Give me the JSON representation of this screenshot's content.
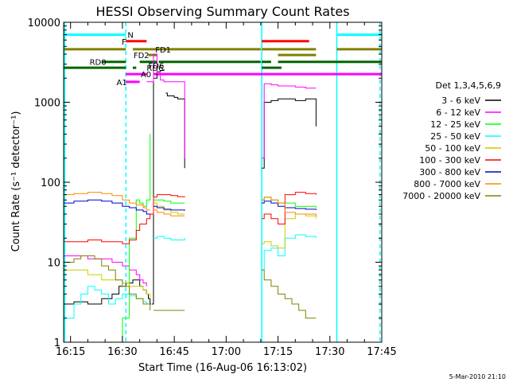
{
  "chart_data": {
    "type": "line",
    "title": "HESSI Observing Summary Count Rates",
    "xlabel": "Start Time (16-Aug-06 16:13:02)",
    "ylabel": "Count Rate (s⁻¹ detector⁻¹)",
    "footer": "5-Mar-2010 21:10",
    "x_range_min": [
      13.0,
      105.0
    ],
    "ylim": [
      1,
      10000
    ],
    "yscale": "log",
    "x_ticks": [
      {
        "min": 15,
        "label": "16:15"
      },
      {
        "min": 30,
        "label": "16:30"
      },
      {
        "min": 45,
        "label": "16:45"
      },
      {
        "min": 60,
        "label": "17:00"
      },
      {
        "min": 75,
        "label": "17:15"
      },
      {
        "min": 90,
        "label": "17:30"
      },
      {
        "min": 105,
        "label": "17:45"
      }
    ],
    "y_ticks": [
      {
        "v": 1,
        "label": "1"
      },
      {
        "v": 10,
        "label": "10"
      },
      {
        "v": 100,
        "label": "100"
      },
      {
        "v": 1000,
        "label": "1000"
      },
      {
        "v": 10000,
        "label": "10000"
      }
    ],
    "legend": {
      "title": "Det 1,3,4,5,6,9",
      "placement": "right"
    },
    "series": [
      {
        "name": "3 - 6 keV",
        "color": "#000000",
        "segments": [
          {
            "x": [
              13.0,
              16,
              20,
              24,
              27,
              29,
              31,
              33,
              35,
              36,
              37,
              37.5,
              38,
              38.3
            ],
            "y": [
              3,
              3.2,
              3,
              3.5,
              4,
              5,
              5.5,
              6,
              5,
              4.5,
              4,
              3.5,
              3,
              3
            ]
          },
          {
            "x": [
              38.5,
              39,
              40,
              41,
              42
            ],
            "y": [
              3,
              2000,
              2400,
              2500,
              2600
            ]
          },
          {
            "x": [
              42.5,
              43,
              44,
              45,
              46,
              47,
              48
            ],
            "y": [
              1300,
              1200,
              1200,
              1150,
              1100,
              1100,
              150
            ]
          },
          {
            "x": [
              70.3,
              71,
              73,
              75,
              77,
              80,
              83,
              86
            ],
            "y": [
              150,
              1000,
              1050,
              1100,
              1100,
              1050,
              1100,
              500
            ]
          }
        ]
      },
      {
        "name": "6 - 12 keV",
        "color": "#ff00ff",
        "segments": [
          {
            "x": [
              13,
              16,
              20,
              24,
              27,
              30,
              32,
              34,
              35,
              36,
              37
            ],
            "y": [
              12,
              12,
              11,
              11,
              10,
              9,
              8,
              7,
              6,
              5.5,
              5
            ]
          },
          {
            "x": [
              37,
              37.5,
              38,
              38.3,
              39,
              40,
              41,
              42
            ],
            "y": [
              1800,
              1800,
              1800,
              1800,
              4000,
              2300,
              1900,
              1800
            ]
          },
          {
            "x": [
              42,
              43,
              45,
              48
            ],
            "y": [
              1800,
              1800,
              1800,
              200
            ]
          },
          {
            "x": [
              70.3,
              71,
              73,
              75,
              77,
              80,
              83,
              86
            ],
            "y": [
              200,
              1700,
              1650,
              1600,
              1600,
              1550,
              1500,
              1500
            ]
          }
        ]
      },
      {
        "name": "12 - 25 keV",
        "color": "#00ff00",
        "segments": [
          {
            "x": [
              13,
              16,
              20,
              24,
              27,
              30,
              32,
              34,
              35,
              36,
              37,
              38
            ],
            "y": [
              1,
              1,
              1,
              1,
              1,
              2,
              20,
              60,
              55,
              50,
              60,
              400
            ]
          },
          {
            "x": [
              39,
              40,
              42,
              44,
              46,
              48
            ],
            "y": [
              60,
              60,
              58,
              55,
              55,
              55
            ]
          },
          {
            "x": [
              70.3,
              71,
              73,
              75,
              77,
              80,
              83,
              86
            ],
            "y": [
              60,
              65,
              60,
              55,
              55,
              50,
              50,
              48
            ]
          }
        ]
      },
      {
        "name": "25 - 50 keV",
        "color": "#00ffff",
        "segments": [
          {
            "x": [
              13,
              16,
              18,
              20,
              22,
              24,
              26,
              28,
              30,
              32,
              34,
              36,
              37,
              38
            ],
            "y": [
              2,
              3,
              4,
              5,
              4.5,
              4,
              3,
              3.5,
              4,
              3.8,
              3.5,
              3.2,
              3,
              3
            ]
          },
          {
            "x": [
              39,
              40,
              42,
              44,
              46,
              48
            ],
            "y": [
              20,
              21,
              20,
              19,
              19,
              20
            ]
          },
          {
            "x": [
              70.3,
              71,
              73,
              75,
              77,
              80,
              83,
              86
            ],
            "y": [
              8,
              14,
              15,
              12,
              20,
              22,
              21,
              20
            ]
          }
        ]
      },
      {
        "name": "50 - 100 keV",
        "color": "#cccc00",
        "segments": [
          {
            "x": [
              13,
              16,
              20,
              24,
              27,
              30,
              32,
              34,
              36,
              37,
              38
            ],
            "y": [
              8,
              8,
              7,
              6,
              6,
              5.5,
              5,
              5,
              4.5,
              4,
              3.5
            ]
          },
          {
            "x": [
              39,
              40,
              42,
              44,
              46,
              48
            ],
            "y": [
              55,
              50,
              45,
              42,
              40,
              40
            ]
          },
          {
            "x": [
              70.3,
              71,
              73,
              75,
              77,
              80,
              83,
              86
            ],
            "y": [
              17,
              18,
              16,
              15,
              35,
              40,
              38,
              35
            ]
          }
        ]
      },
      {
        "name": "100 - 300 keV",
        "color": "#ff0000",
        "segments": [
          {
            "x": [
              13,
              16,
              20,
              24,
              27,
              30,
              32,
              34,
              35,
              36,
              37
            ],
            "y": [
              18,
              18,
              19,
              18,
              18,
              17,
              19,
              25,
              30,
              30,
              35
            ]
          },
          {
            "x": [
              37,
              38,
              39,
              40,
              42,
              44,
              46,
              48
            ],
            "y": [
              35,
              40,
              65,
              70,
              70,
              68,
              66,
              65
            ]
          },
          {
            "x": [
              70.3,
              71,
              73,
              75,
              77,
              80,
              83,
              86
            ],
            "y": [
              35,
              40,
              35,
              30,
              70,
              75,
              72,
              70
            ]
          }
        ]
      },
      {
        "name": "300 - 800 keV",
        "color": "#0000cc",
        "segments": [
          {
            "x": [
              13,
              16,
              20,
              24,
              27,
              30,
              32,
              34,
              36,
              37,
              38
            ],
            "y": [
              55,
              58,
              60,
              58,
              55,
              50,
              48,
              45,
              43,
              40,
              40
            ]
          },
          {
            "x": [
              39,
              40,
              42,
              44,
              46,
              48
            ],
            "y": [
              50,
              48,
              46,
              45,
              45,
              44
            ]
          },
          {
            "x": [
              70.3,
              71,
              73,
              75,
              77,
              80,
              83,
              86
            ],
            "y": [
              55,
              58,
              55,
              50,
              48,
              47,
              46,
              45
            ]
          }
        ]
      },
      {
        "name": "800 - 7000 keV",
        "color": "#ff8800",
        "segments": [
          {
            "x": [
              13,
              16,
              20,
              24,
              27,
              30,
              32,
              34,
              36,
              37,
              38
            ],
            "y": [
              70,
              72,
              75,
              72,
              68,
              60,
              55,
              52,
              48,
              45,
              45
            ]
          },
          {
            "x": [
              39,
              40,
              42,
              44,
              46,
              48
            ],
            "y": [
              45,
              42,
              40,
              38,
              38,
              38
            ]
          },
          {
            "x": [
              70.3,
              71,
              73,
              75,
              77,
              80,
              83,
              86
            ],
            "y": [
              60,
              65,
              60,
              55,
              42,
              40,
              40,
              38
            ]
          }
        ]
      },
      {
        "name": "7000 - 20000 keV",
        "color": "#808000",
        "segments": [
          {
            "x": [
              13,
              16,
              18,
              20,
              22,
              24,
              26,
              28,
              30,
              32,
              34,
              36,
              37,
              38
            ],
            "y": [
              10,
              11,
              12,
              12,
              11,
              9,
              8,
              6,
              5,
              4,
              3.5,
              3,
              3,
              2.5
            ]
          },
          {
            "x": [
              39,
              40,
              42,
              44,
              46,
              48
            ],
            "y": [
              2.5,
              2.5,
              2.5,
              2.5,
              2.5,
              2.5
            ]
          },
          {
            "x": [
              70.3,
              71,
              73,
              75,
              77,
              79,
              81,
              83,
              86
            ],
            "y": [
              8,
              6,
              5,
              4,
              3.5,
              3,
              2.5,
              2,
              2
            ]
          }
        ]
      }
    ],
    "flags": [
      {
        "name": "N",
        "color": "#00ffff",
        "y": 7000,
        "label_min": 31.5,
        "intervals": [
          [
            13.0,
            31.0
          ],
          [
            92.0,
            105.0
          ]
        ]
      },
      {
        "name": "F",
        "color": "#ff0000",
        "y": 5800,
        "label_min": 29.8,
        "intervals": [
          [
            31.0,
            37.0
          ],
          [
            70.3,
            84.0
          ]
        ]
      },
      {
        "name": "FD1",
        "color": "#808000",
        "y": 4600,
        "label_min": 39.5,
        "intervals": [
          [
            13.0,
            31.0
          ],
          [
            33.0,
            70.0
          ],
          [
            70.3,
            86.0
          ],
          [
            92.0,
            105.0
          ]
        ]
      },
      {
        "name": "FD2",
        "color": "#808000",
        "y": 3900,
        "label_min": 33.2,
        "intervals": [
          [
            37.5,
            40.0
          ],
          [
            75.0,
            86.0
          ]
        ]
      },
      {
        "name": "RD0",
        "color": "#006600",
        "y": 3200,
        "label_min": 20.5,
        "intervals": [
          [
            24.0,
            31.0
          ],
          [
            35.0,
            40.0
          ],
          [
            40.5,
            70.0
          ],
          [
            70.3,
            73.0
          ],
          [
            75.0,
            105.0
          ]
        ]
      },
      {
        "name": "FD6",
        "color": "#808000",
        "y": 2900,
        "label_min": 37.5,
        "intervals": []
      },
      {
        "name": "RD6",
        "color": "#006600",
        "y": 2700,
        "label_min": 37.0,
        "intervals": [
          [
            13.0,
            31.0
          ],
          [
            33.0,
            34.0
          ],
          [
            70.3,
            76.0
          ]
        ]
      },
      {
        "name": "A0",
        "color": "#ff00ff",
        "y": 2250,
        "label_min": 35.3,
        "intervals": [
          [
            31.0,
            37.0
          ],
          [
            39.0,
            105.0
          ]
        ]
      },
      {
        "name": "A1",
        "color": "#ff00ff",
        "y": 1800,
        "label_min": 28.3,
        "intervals": [
          [
            31.0,
            35.0
          ]
        ]
      }
    ],
    "vlines": [
      {
        "min": 13.3,
        "color": "#00ffff",
        "dashed": false
      },
      {
        "min": 31.0,
        "color": "#00ffff",
        "dashed": true
      },
      {
        "min": 70.3,
        "color": "#00ffff",
        "dashed": false
      },
      {
        "min": 92.0,
        "color": "#00ffff",
        "dashed": false
      },
      {
        "min": 104.5,
        "color": "#00ffff",
        "dashed": true
      }
    ]
  }
}
